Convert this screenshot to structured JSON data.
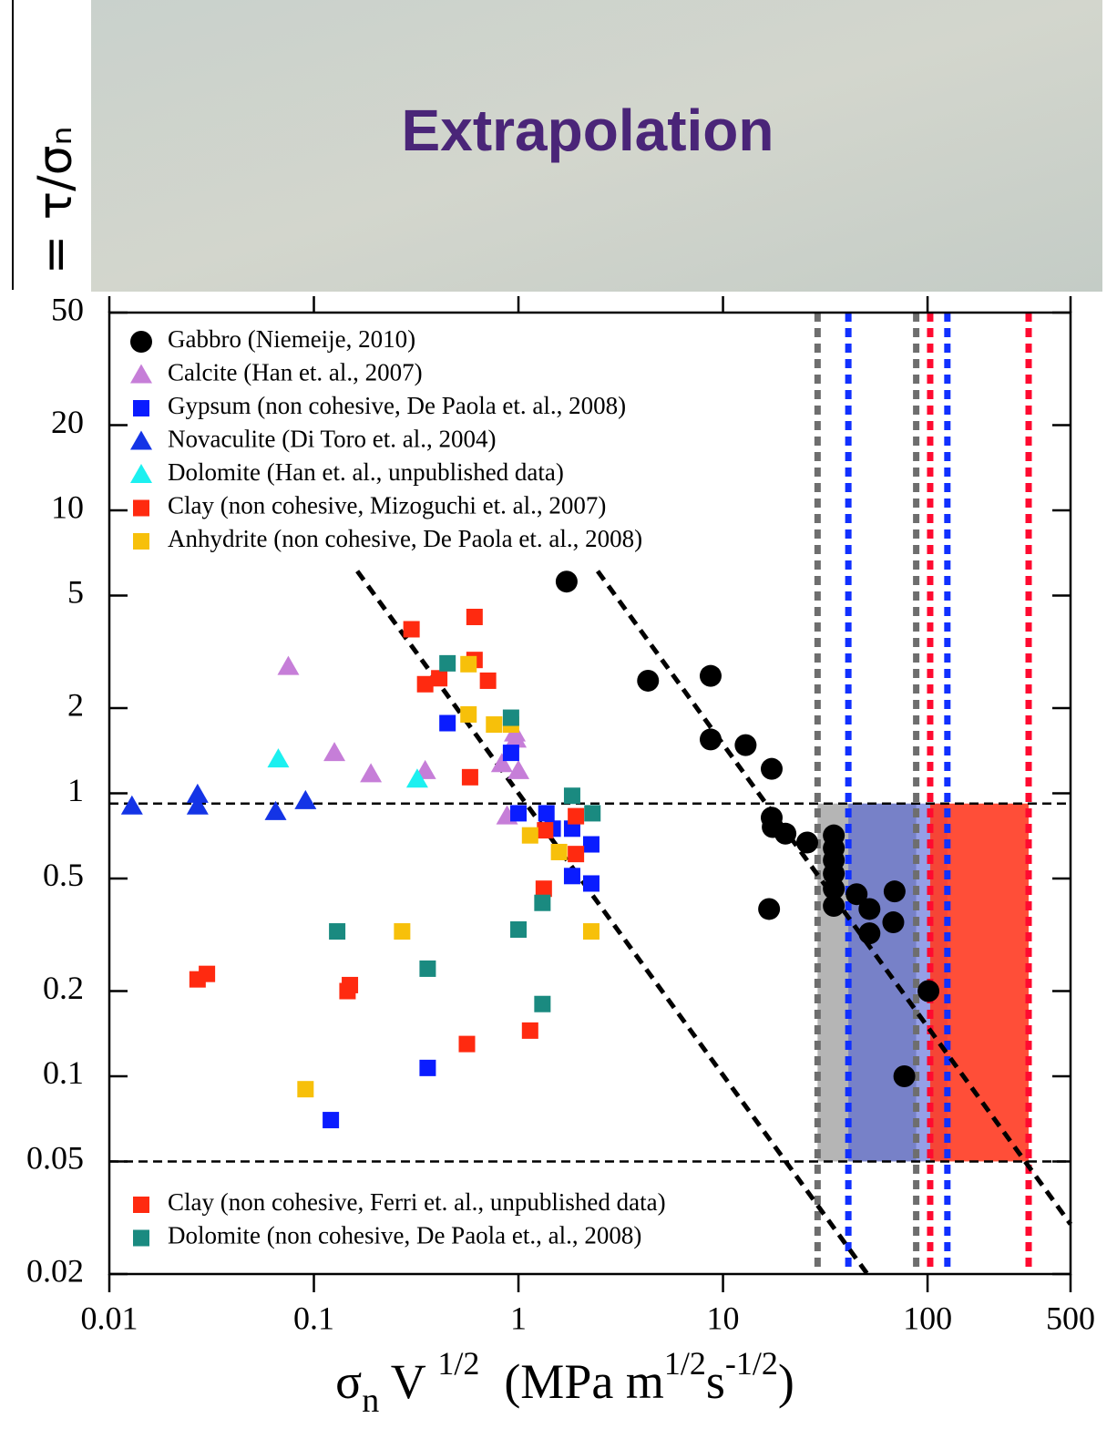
{
  "chart_data": {
    "type": "scatter",
    "title": "Extrapolation",
    "ylabel": "= τ/σₙ",
    "xlabel": [
      "σ",
      "n",
      " V ",
      "1/2",
      "  (MPa m",
      "1/2",
      "s",
      "-1/2",
      ")"
    ],
    "log_x": true,
    "log_y": true,
    "xlim": [
      0.01,
      500
    ],
    "ylim": [
      0.02,
      50
    ],
    "xticks": [
      0.01,
      0.1,
      1,
      10,
      100,
      500
    ],
    "yticks": [
      0.02,
      0.05,
      0.1,
      0.2,
      0.5,
      1,
      2,
      5,
      10,
      20,
      50
    ],
    "bands": [
      {
        "x": [
          29,
          88
        ],
        "y": [
          0.05,
          0.92
        ],
        "color": "#b5b5b5"
      },
      {
        "x": [
          41,
          125
        ],
        "y": [
          0.05,
          0.92
        ],
        "color": "#4f5fd6"
      },
      {
        "x": [
          103,
          312
        ],
        "y": [
          0.05,
          0.92
        ],
        "color": "#ff3b22"
      }
    ],
    "hlines": [
      0.92,
      0.05
    ],
    "vlines": [
      {
        "x": 29,
        "color": "#6e6e6e"
      },
      {
        "x": 88,
        "color": "#6e6e6e"
      },
      {
        "x": 41,
        "color": "#1030ff"
      },
      {
        "x": 125,
        "color": "#1030ff"
      },
      {
        "x": 103,
        "color": "#ff0a30"
      },
      {
        "x": 312,
        "color": "#ff0a30"
      }
    ],
    "fit_lines": [
      {
        "x": [
          0.163,
          50.8
        ],
        "y": [
          6.1,
          0.02
        ]
      },
      {
        "x": [
          2.44,
          500
        ],
        "y": [
          6.1,
          0.03
        ]
      }
    ],
    "series": [
      {
        "name": "Gabbro (Niemeije, 2010)",
        "color": "#000000",
        "marker": "circle",
        "legend": "upper left",
        "x": [
          1.72,
          4.3,
          8.7,
          8.7,
          12.9,
          17.3,
          17.3,
          17.5,
          20.2,
          25.8,
          34.8,
          34.8,
          34.8,
          34.8,
          34.8,
          34.8,
          16.8,
          45,
          52,
          52,
          69,
          68,
          101,
          77
        ],
        "values": [
          5.6,
          2.5,
          2.6,
          1.55,
          1.48,
          1.22,
          0.82,
          0.76,
          0.72,
          0.67,
          0.71,
          0.64,
          0.58,
          0.52,
          0.46,
          0.4,
          0.39,
          0.44,
          0.39,
          0.32,
          0.45,
          0.35,
          0.2,
          0.1
        ]
      },
      {
        "name": "Calcite (Han et. al., 2007)",
        "color": "#c67ed8",
        "marker": "triangle",
        "legend": "upper left",
        "x": [
          0.075,
          0.126,
          0.19,
          0.35,
          0.96,
          0.97,
          0.83,
          1.0,
          0.88
        ],
        "values": [
          2.8,
          1.39,
          1.17,
          1.2,
          1.63,
          1.55,
          1.27,
          1.2,
          0.83
        ]
      },
      {
        "name": "Gypsum (non cohesive, De Paola et. al., 2008)",
        "color": "#0a1cff",
        "marker": "square",
        "legend": "upper left",
        "x": [
          0.45,
          0.92,
          1.0,
          1.37,
          1.47,
          1.83,
          2.27,
          1.83,
          2.27,
          0.36,
          0.121
        ],
        "values": [
          1.77,
          1.39,
          0.85,
          0.85,
          0.75,
          0.75,
          0.66,
          0.51,
          0.48,
          0.107,
          0.07
        ]
      },
      {
        "name": "Novaculite (Di Toro et. al., 2004)",
        "color": "#1434e6",
        "marker": "triangle",
        "legend": "upper left",
        "x": [
          0.0129,
          0.027,
          0.027,
          0.065,
          0.091
        ],
        "values": [
          0.9,
          0.99,
          0.9,
          0.86,
          0.94
        ]
      },
      {
        "name": "Dolomite (Han et. al., unpublished data)",
        "color": "#1cf0f0",
        "marker": "triangle",
        "legend": "upper left",
        "x": [
          0.067,
          0.32
        ],
        "values": [
          1.32,
          1.12
        ]
      },
      {
        "name": "Clay (non cohesive, Mizoguchi et. al., 2007)",
        "color": "#ff2a10",
        "marker": "square",
        "legend": "upper left",
        "x": [
          0.3,
          0.61,
          0.61,
          0.35,
          0.41,
          0.71,
          0.58,
          1.35,
          1.91,
          1.91
        ],
        "values": [
          3.8,
          4.2,
          2.96,
          2.43,
          2.55,
          2.5,
          1.14,
          0.74,
          0.83,
          0.61
        ]
      },
      {
        "name": "Anhydrite (non cohesive, De Paola et. al., 2008)",
        "color": "#f7c00a",
        "marker": "square",
        "legend": "upper left",
        "x": [
          0.57,
          0.57,
          0.76,
          0.92,
          1.14,
          1.58,
          2.27,
          0.27,
          0.091
        ],
        "values": [
          2.86,
          1.9,
          1.75,
          1.75,
          0.71,
          0.62,
          0.325,
          0.325,
          0.09
        ]
      },
      {
        "name": "Clay (non cohesive, Ferri et. al., unpublished data)",
        "color": "#ff2a10",
        "marker": "square",
        "legend": "lower left",
        "x": [
          0.027,
          0.03,
          0.146,
          0.15,
          0.56,
          1.14,
          1.33
        ],
        "values": [
          0.22,
          0.23,
          0.2,
          0.21,
          0.13,
          0.145,
          0.46
        ]
      },
      {
        "name": "Dolomite (non cohesive, De Paola et., al., 2008)",
        "color": "#1a8a80",
        "marker": "square",
        "legend": "lower left",
        "x": [
          0.45,
          0.92,
          1.83,
          2.3,
          0.13,
          0.36,
          1.0,
          1.31,
          1.31
        ],
        "values": [
          2.88,
          1.85,
          0.98,
          0.85,
          0.325,
          0.24,
          0.33,
          0.41,
          0.18
        ]
      }
    ]
  }
}
